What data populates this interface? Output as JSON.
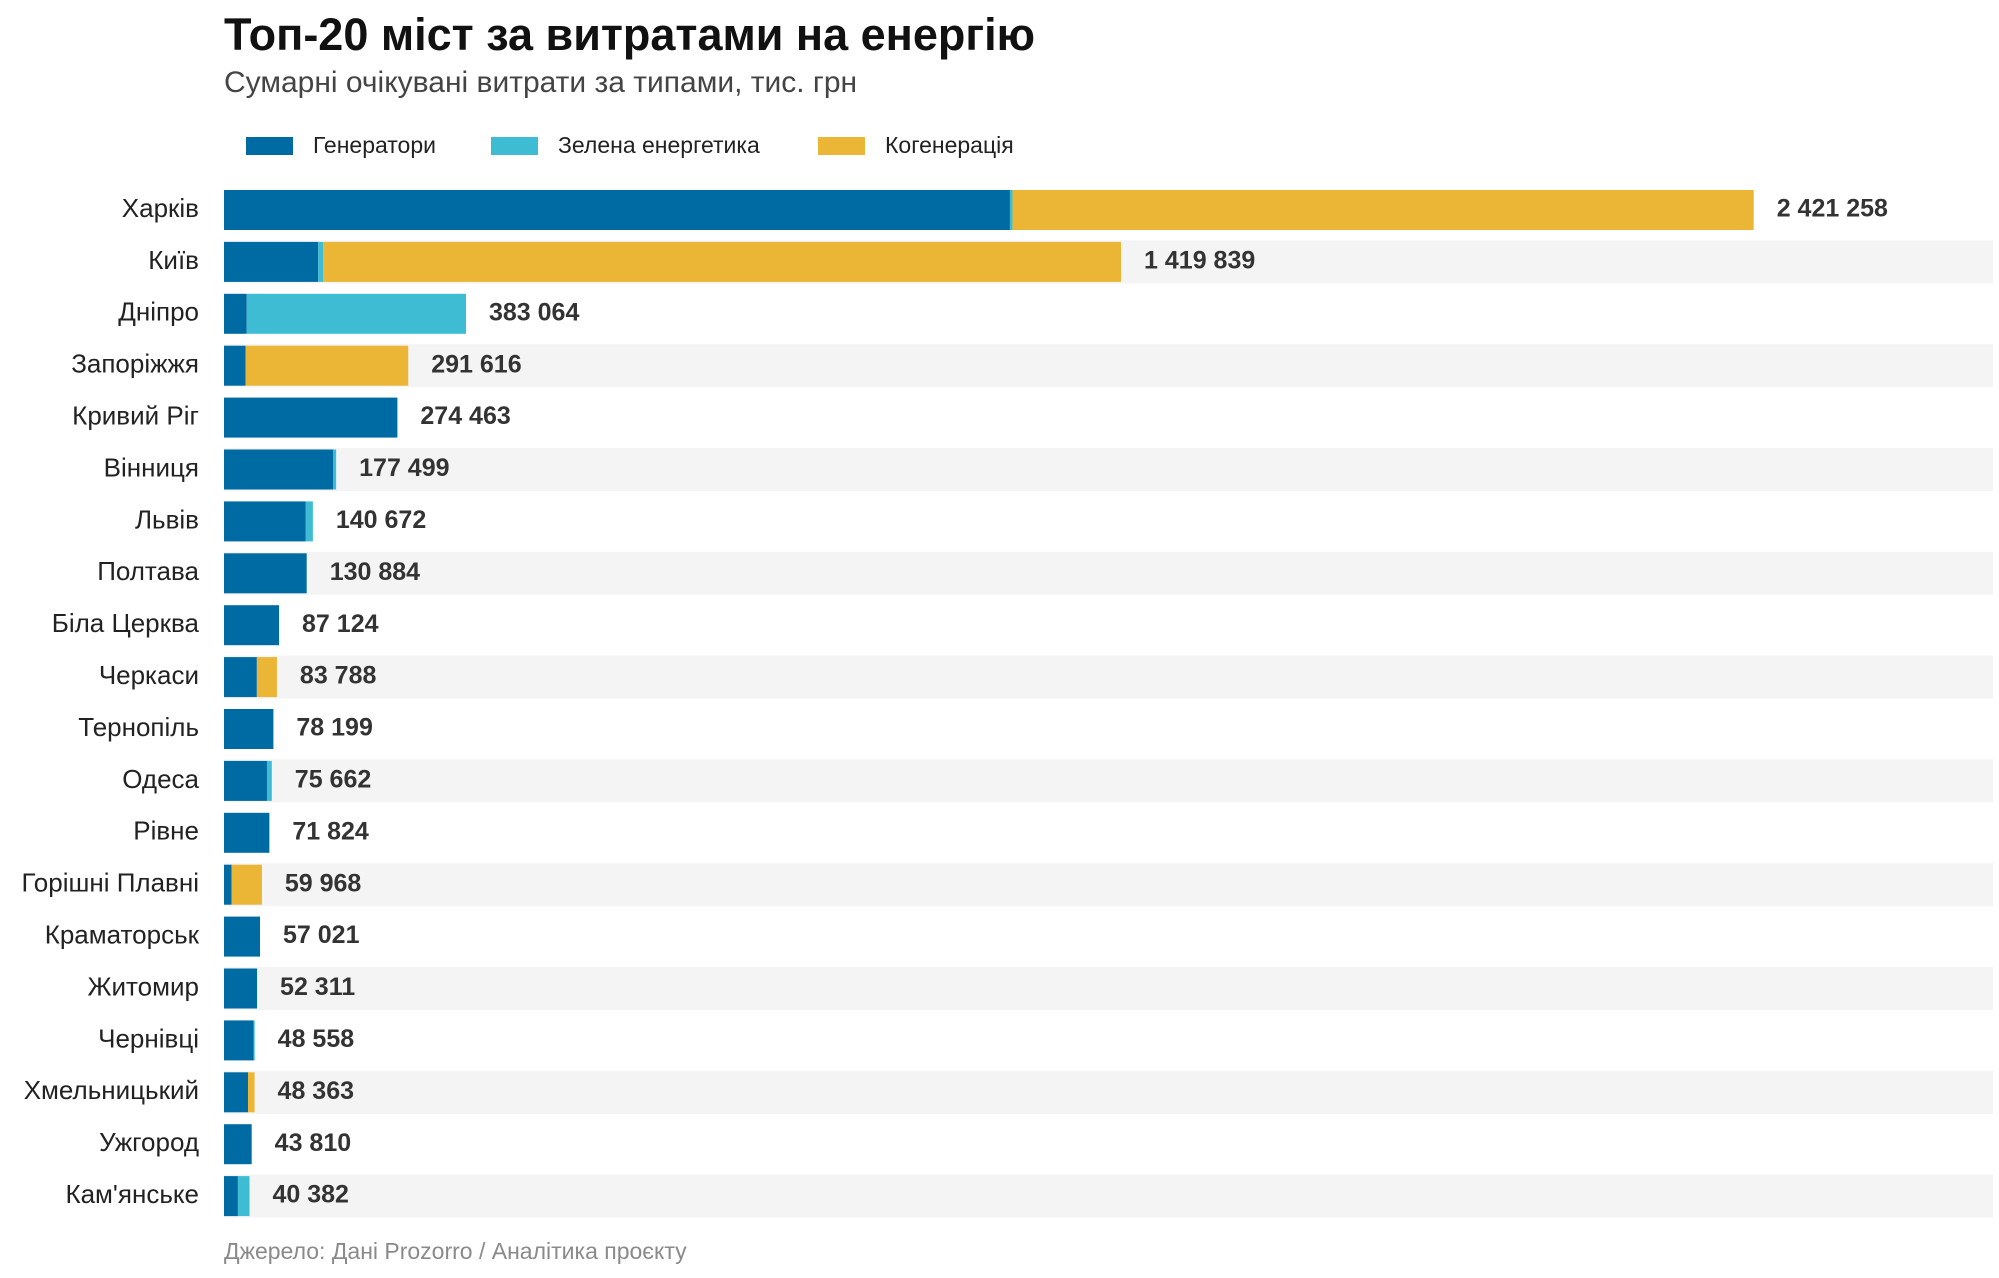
{
  "chart_data": {
    "type": "stacked-bar-horizontal",
    "title": "Топ-20 міст за витратами на енергію",
    "subtitle": "Сумарні очікувані витрати за типами, тис. грн",
    "source": "Джерело: Дані Prozorro / Аналітика проєкту",
    "categories": [
      "Харків",
      "Київ",
      "Дніпро",
      "Запоріжжя",
      "Кривий Ріг",
      "Вінниця",
      "Львів",
      "Полтава",
      "Біла Церква",
      "Черкаси",
      "Тернопіль",
      "Одеса",
      "Рівне",
      "Горішні Плавні",
      "Краматорськ",
      "Житомир",
      "Чернівці",
      "Хмельницький",
      "Ужгород",
      "Кам'янське"
    ],
    "series": [
      {
        "name": "Генератори",
        "color": "#006aa3",
        "values": [
          1244000,
          149000,
          36000,
          34000,
          274463,
          173000,
          129000,
          130884,
          87124,
          52000,
          78199,
          68000,
          71824,
          12000,
          57021,
          52311,
          47000,
          38000,
          43810,
          22000
        ]
      },
      {
        "name": "Зелена енергетика",
        "color": "#3ebcd3",
        "values": [
          4000,
          8000,
          347064,
          0,
          0,
          4499,
          11672,
          0,
          0,
          0,
          0,
          7662,
          0,
          0,
          0,
          0,
          1558,
          0,
          0,
          18382
        ]
      },
      {
        "name": "Когенерація",
        "color": "#ebb536",
        "values": [
          1173258,
          1262839,
          0,
          257616,
          0,
          0,
          0,
          0,
          0,
          31788,
          0,
          0,
          0,
          47968,
          0,
          0,
          0,
          10363,
          0,
          0
        ]
      }
    ],
    "totals": {
      "values": [
        2421258,
        1419839,
        383064,
        291616,
        274463,
        177499,
        140672,
        130884,
        87124,
        83788,
        78199,
        75662,
        71824,
        59968,
        57021,
        52311,
        48558,
        48363,
        43810,
        40382
      ],
      "value_labels": [
        "2 421 258",
        "1 419 839",
        "383 064",
        "291 616",
        "274 463",
        "177 499",
        "140 672",
        "130 884",
        "87 124",
        "83 788",
        "78 199",
        "75 662",
        "71 824",
        "59 968",
        "57 021",
        "52 311",
        "48 558",
        "48 363",
        "43 810",
        "40 382"
      ]
    },
    "xlim": [
      0,
      2800000
    ],
    "stripe_color": "#f4f4f4"
  }
}
